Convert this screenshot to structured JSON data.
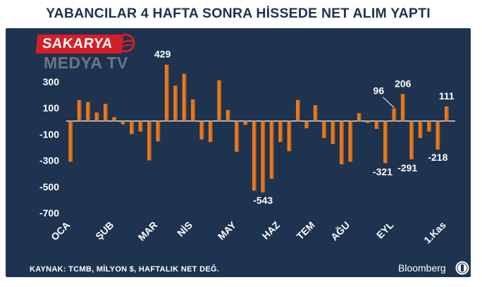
{
  "title": "YABANCILAR 4 HAFTA SONRA HİSSEDE NET ALIM YAPTI",
  "logo": {
    "name": "SAKARYA",
    "sub": "MEDYA TV"
  },
  "source": "KAYNAK: TCMB, MİLYON $, HAFTALIK NET DEĞ.",
  "brand": "Bloomberg",
  "colors": {
    "background": "#1d3350",
    "bar": "#e8791f",
    "bar_dark": "#9a4a10",
    "text": "#ffffff",
    "title": "#1d3350",
    "logo_red": "#d41f26"
  },
  "chart_data": {
    "type": "bar",
    "title": "YABANCILAR 4 HAFTA SONRA HİSSEDE NET ALIM YAPTI",
    "xlabel": "",
    "ylabel": "Milyon $",
    "ylim": [
      -750,
      480
    ],
    "yticks": [
      300,
      100,
      -100,
      -300,
      -500,
      -700
    ],
    "month_labels": [
      {
        "label": "OCA",
        "week": 0
      },
      {
        "label": "ŞUB",
        "week": 5
      },
      {
        "label": "MAR",
        "week": 10
      },
      {
        "label": "NİS",
        "week": 14
      },
      {
        "label": "MAY",
        "week": 19
      },
      {
        "label": "HAZ",
        "week": 24
      },
      {
        "label": "TEM",
        "week": 28
      },
      {
        "label": "AĞU",
        "week": 32
      },
      {
        "label": "EYL",
        "week": 37
      },
      {
        "label": "1.Kas",
        "week": 43
      }
    ],
    "values": [
      -310,
      160,
      145,
      65,
      130,
      30,
      -25,
      -100,
      -80,
      -300,
      -155,
      429,
      270,
      360,
      165,
      -140,
      -160,
      310,
      85,
      -235,
      -30,
      -530,
      -543,
      -440,
      -160,
      -230,
      160,
      -55,
      120,
      -130,
      -175,
      -330,
      -310,
      60,
      -15,
      -60,
      -321,
      96,
      206,
      -291,
      -130,
      -80,
      -218,
      111
    ],
    "annotations": [
      {
        "week": 11,
        "text": "429"
      },
      {
        "week": 22,
        "text": "-543"
      },
      {
        "week": 36,
        "text": "-321"
      },
      {
        "week": 37,
        "text": "96"
      },
      {
        "week": 38,
        "text": "206"
      },
      {
        "week": 39,
        "text": "-291"
      },
      {
        "week": 42,
        "text": "-218"
      },
      {
        "week": 43,
        "text": "111"
      }
    ]
  }
}
